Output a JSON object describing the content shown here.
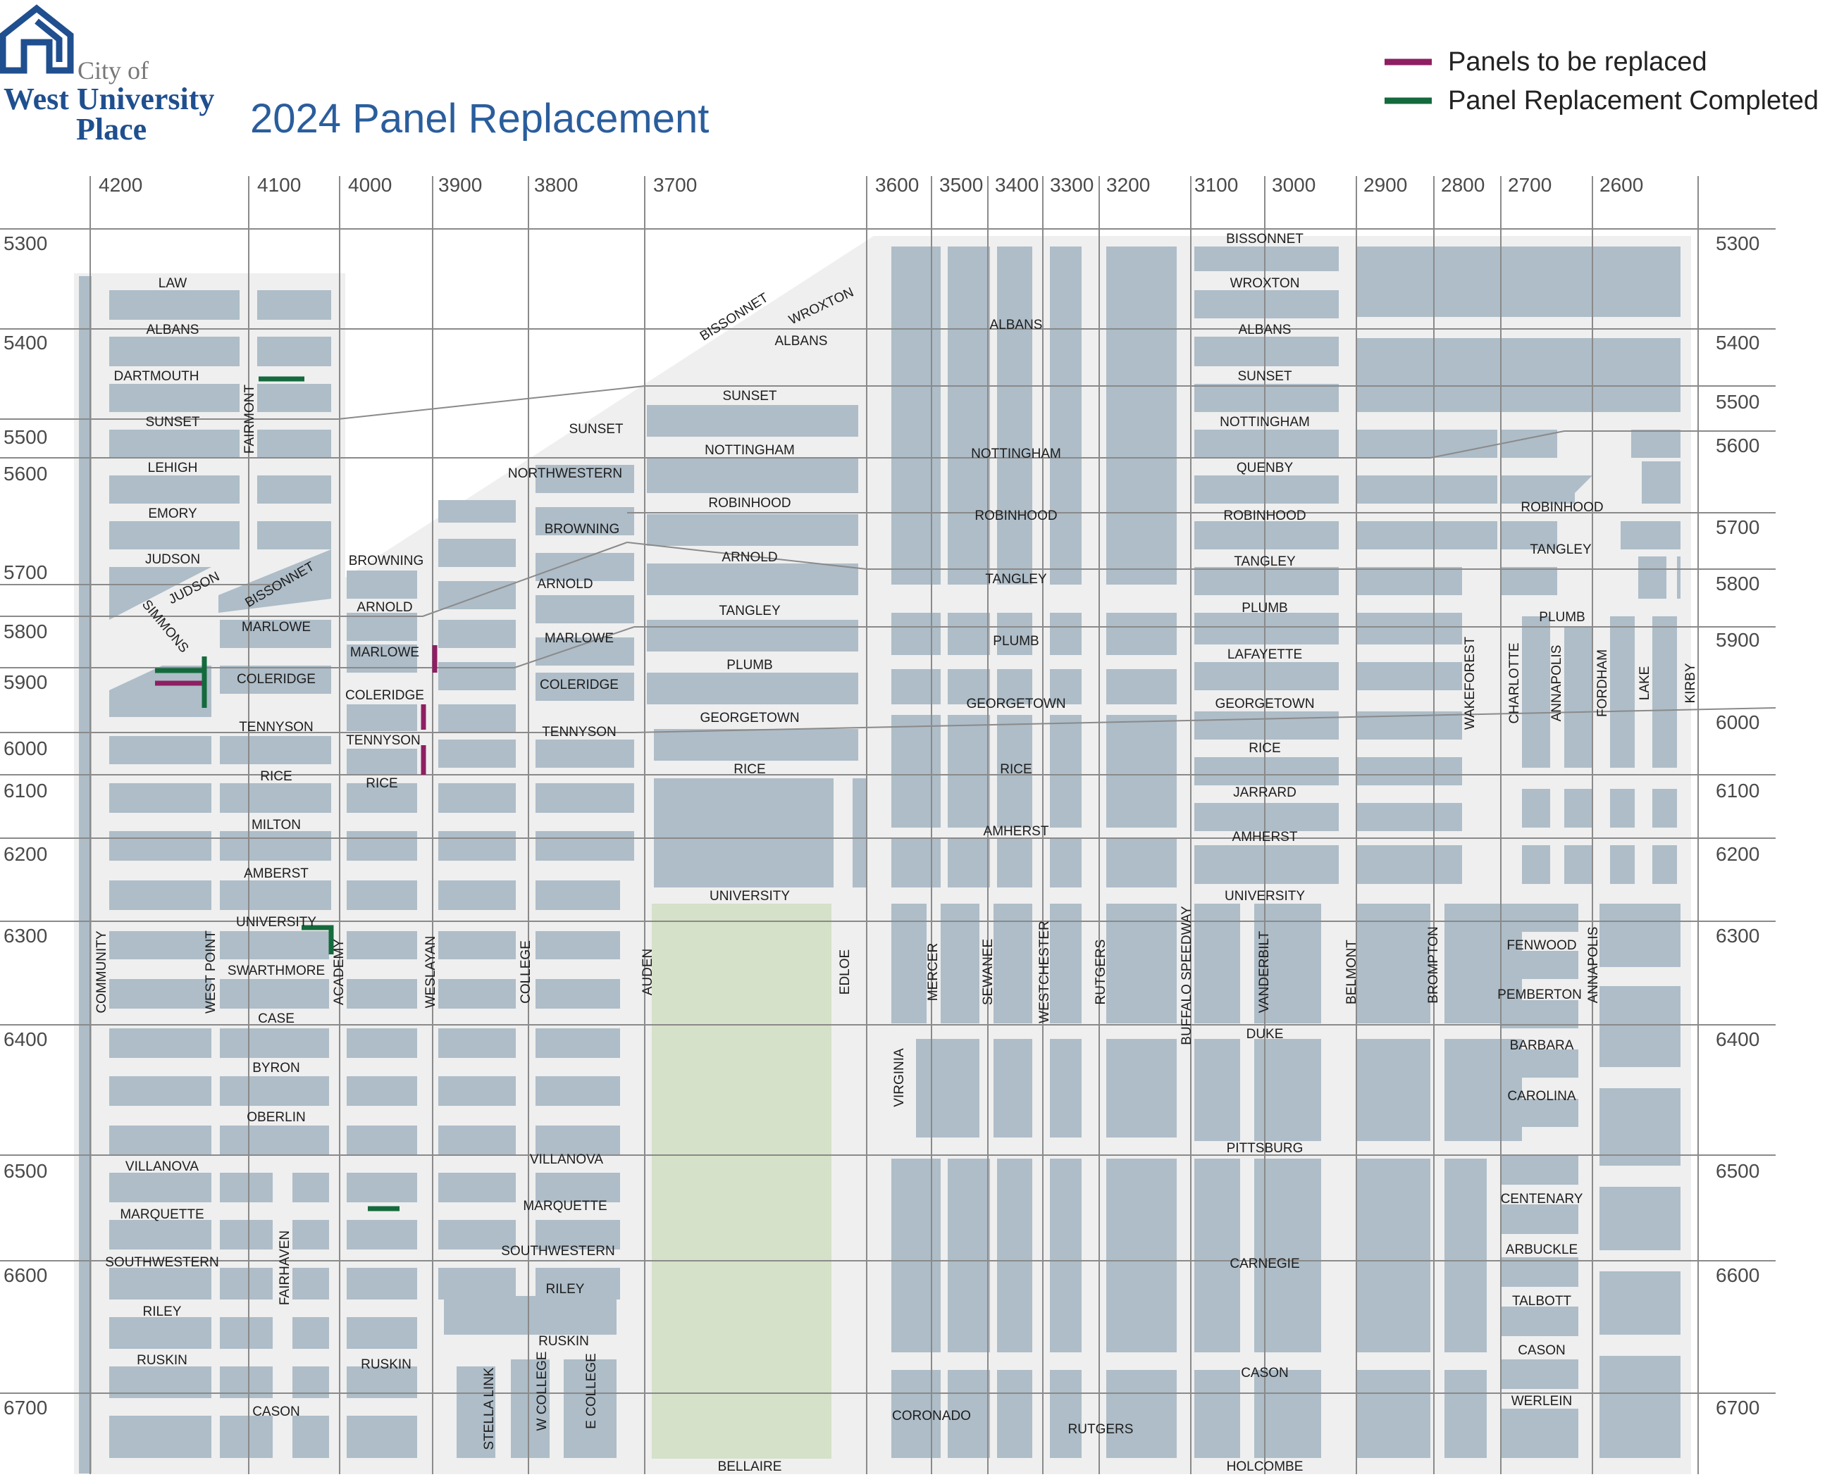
{
  "header": {
    "logo": {
      "line1": "City of",
      "line2": "West University",
      "line3": "Place"
    },
    "title": "2024 Panel Replacement"
  },
  "legend": {
    "items": [
      {
        "label": "Panels to be replaced",
        "color": "#8e1f62"
      },
      {
        "label": "Panel Replacement Completed",
        "color": "#146a3c"
      }
    ]
  },
  "colors": {
    "block": "#aebdc8",
    "street": "#efefef",
    "park": "#d5e1c8",
    "grid": "#8a8a8a",
    "title": "#2a5d9c"
  },
  "top_numbers": [
    "4200",
    "4100",
    "4000",
    "3900",
    "3800",
    "3700",
    "3600",
    "3500",
    "3400",
    "3300",
    "3200",
    "3100",
    "3000",
    "2900",
    "2800",
    "2700",
    "2600"
  ],
  "left_numbers": [
    "5300",
    "5400",
    "5500",
    "5600",
    "5700",
    "5800",
    "5900",
    "6000",
    "6100",
    "6200",
    "6300",
    "6400",
    "6500",
    "6600",
    "6700"
  ],
  "right_numbers": [
    "5300",
    "5400",
    "5500",
    "5600",
    "5700",
    "5800",
    "5900",
    "6000",
    "6100",
    "6200",
    "6300",
    "6400",
    "6500",
    "6600",
    "6700"
  ],
  "streets": [
    "LAW",
    "ALBANS",
    "DARTMOUTH",
    "SUNSET",
    "LEHIGH",
    "EMORY",
    "JUDSON",
    "JUDSON",
    "SIMMONS",
    "BISSONNET",
    "MARLOWE",
    "COLERIDGE",
    "TENNYSON",
    "RICE",
    "MILTON",
    "AMBERST",
    "UNIVERSITY",
    "SWARTHMORE",
    "CASE",
    "BYRON",
    "OBERLIN",
    "VILLANOVA",
    "MARQUETTE",
    "SOUTHWESTERN",
    "RILEY",
    "RUSKIN",
    "CASON",
    "FAIRMONT",
    "COMMUNITY",
    "WEST POINT",
    "ACADEMY",
    "FAIRHAVEN",
    "BROWNING",
    "ARNOLD",
    "MARLOWE",
    "COLERIDGE",
    "TENNYSON",
    "RICE",
    "RUSKIN",
    "WESLAYAN",
    "STELLA LINK",
    "SUNSET",
    "NORTHWESTERN",
    "BROWNING",
    "ARNOLD",
    "MARLOWE",
    "COLERIDGE",
    "TENNYSON",
    "COLLEGE",
    "VILLANOVA",
    "MARQUETTE",
    "SOUTHWESTERN",
    "RILEY",
    "RUSKIN",
    "W COLLEGE",
    "E COLLEGE",
    "BISSONNET",
    "WROXTON",
    "ALBANS",
    "SUNSET",
    "NOTTINGHAM",
    "ROBINHOOD",
    "ARNOLD",
    "TANGLEY",
    "PLUMB",
    "GEORGETOWN",
    "RICE",
    "UNIVERSITY",
    "AUDEN",
    "EDLOE",
    "BELLAIRE",
    "ALBANS",
    "NOTTINGHAM",
    "ROBINHOOD",
    "TANGLEY",
    "PLUMB",
    "GEORGETOWN",
    "RICE",
    "AMHERST",
    "VIRGINIA",
    "MERCER",
    "SEWANEE",
    "WESTCHESTER",
    "RUTGERS",
    "CORONADO",
    "RUTGERS",
    "BISSONNET",
    "WROXTON",
    "ALBANS",
    "SUNSET",
    "NOTTINGHAM",
    "QUENBY",
    "ROBINHOOD",
    "TANGLEY",
    "PLUMB",
    "LAFAYETTE",
    "GEORGETOWN",
    "RICE",
    "JARRARD",
    "AMHERST",
    "UNIVERSITY",
    "DUKE",
    "PITTSBURG",
    "CARNEGIE",
    "CASON",
    "HOLCOMBE",
    "BUFFALO SPEEDWAY",
    "VANDERBILT",
    "BELMONT",
    "BROMPTON",
    "ROBINHOOD",
    "TANGLEY",
    "PLUMB",
    "WAKEFOREST",
    "CHARLOTTE",
    "ANNAPOLIS",
    "FORDHAM",
    "LAKE",
    "KIRBY",
    "FENWOOD",
    "PEMBERTON",
    "ANNAPOLIS",
    "BARBARA",
    "CAROLINA",
    "CENTENARY",
    "ARBUCKLE",
    "TALBOTT",
    "CASON",
    "WERLEIN"
  ]
}
